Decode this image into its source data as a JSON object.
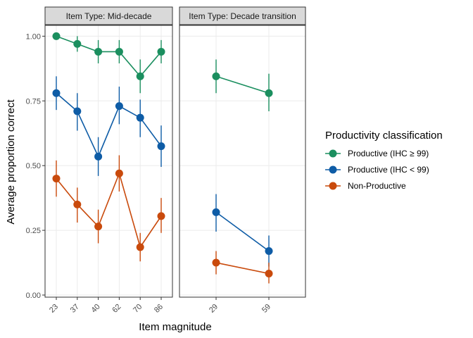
{
  "chart_data": {
    "type": "line",
    "ylabel": "Average proportion correct",
    "xlabel": "Item magnitude",
    "ylim": [
      0,
      1.05
    ],
    "yticks": [
      0,
      0.25,
      0.5,
      0.75,
      1.0
    ],
    "ytick_labels": [
      "0.00",
      "0.25",
      "0.50",
      "0.75",
      "1.00"
    ],
    "legend": {
      "title": "Productivity classification",
      "position": "right",
      "entries": [
        {
          "name": "Productive (IHC ≥ 99)",
          "color": "#1b8f5f"
        },
        {
          "name": "Productive (IHC < 99)",
          "color": "#0e5ca6"
        },
        {
          "name": "Non-Productive",
          "color": "#c94a0c"
        }
      ]
    },
    "panels": [
      {
        "strip": "Item Type: Mid-decade",
        "categories": [
          "23",
          "37",
          "40",
          "62",
          "70",
          "86"
        ],
        "series": [
          {
            "name": "Productive (IHC ≥ 99)",
            "color": "#1b8f5f",
            "values": [
              1.0,
              0.97,
              0.94,
              0.94,
              0.845,
              0.94
            ],
            "lower": [
              1.0,
              0.94,
              0.895,
              0.895,
              0.78,
              0.895
            ],
            "upper": [
              1.0,
              1.0,
              0.985,
              0.985,
              0.91,
              0.985
            ]
          },
          {
            "name": "Productive (IHC < 99)",
            "color": "#0e5ca6",
            "values": [
              0.78,
              0.71,
              0.535,
              0.73,
              0.685,
              0.575
            ],
            "lower": [
              0.715,
              0.635,
              0.46,
              0.66,
              0.61,
              0.495
            ],
            "upper": [
              0.845,
              0.78,
              0.61,
              0.805,
              0.755,
              0.655
            ]
          },
          {
            "name": "Non-Productive",
            "color": "#c94a0c",
            "values": [
              0.45,
              0.35,
              0.265,
              0.47,
              0.185,
              0.305
            ],
            "lower": [
              0.38,
              0.28,
              0.2,
              0.4,
              0.13,
              0.24
            ],
            "upper": [
              0.52,
              0.415,
              0.33,
              0.54,
              0.24,
              0.375
            ]
          }
        ]
      },
      {
        "strip": "Item Type: Decade transition",
        "categories": [
          "29",
          "59"
        ],
        "series": [
          {
            "name": "Productive (IHC ≥ 99)",
            "color": "#1b8f5f",
            "values": [
              0.845,
              0.78
            ],
            "lower": [
              0.78,
              0.71
            ],
            "upper": [
              0.91,
              0.855
            ]
          },
          {
            "name": "Productive (IHC < 99)",
            "color": "#0e5ca6",
            "values": [
              0.32,
              0.17
            ],
            "lower": [
              0.245,
              0.11
            ],
            "upper": [
              0.39,
              0.23
            ]
          },
          {
            "name": "Non-Productive",
            "color": "#c94a0c",
            "values": [
              0.125,
              0.083
            ],
            "lower": [
              0.08,
              0.045
            ],
            "upper": [
              0.17,
              0.125
            ]
          }
        ]
      }
    ]
  }
}
